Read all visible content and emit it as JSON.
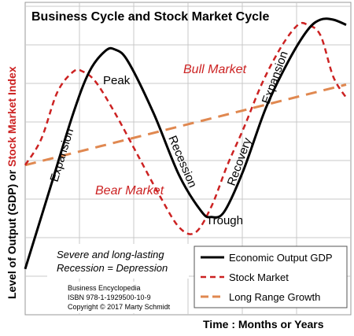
{
  "chart_data": {
    "type": "line",
    "title": "Business Cycle and Stock Market Cycle",
    "xlabel": "Time : Months or Years",
    "ylabel_part1": "Level of Output  (GDP) or ",
    "ylabel_part2": "Stock Market Index",
    "grid": true,
    "legend_position": "bottom-right",
    "xlim": [
      0,
      100
    ],
    "ylim": [
      0,
      100
    ],
    "colors": {
      "gdp": "#000000",
      "stock": "#cc2222",
      "growth": "#e08850",
      "grid": "#c8c8c8",
      "annotation_red": "#cc2222"
    },
    "series": [
      {
        "key": "gdp",
        "name": "Economic Output GDP",
        "x": [
          0,
          8,
          15,
          20,
          25,
          28,
          32,
          40,
          48,
          55,
          58,
          62,
          68,
          75,
          82,
          88,
          92,
          96,
          100
        ],
        "y": [
          4,
          36,
          64,
          80,
          88,
          88.5,
          84,
          64,
          40,
          26,
          24,
          26,
          42,
          66,
          84,
          96,
          100,
          100,
          98
        ]
      },
      {
        "key": "stock",
        "name": "Stock Market",
        "x": [
          0,
          5,
          10,
          15,
          18,
          22,
          28,
          35,
          42,
          48,
          53,
          58,
          63,
          68,
          74,
          80,
          85,
          88,
          92,
          96,
          100
        ],
        "y": [
          44,
          54,
          72,
          80,
          80,
          76,
          64,
          48,
          32,
          20,
          18,
          28,
          44,
          58,
          76,
          90,
          98,
          98,
          94,
          78,
          70
        ]
      },
      {
        "key": "growth",
        "name": "Long Range Growth",
        "x": [
          0,
          100
        ],
        "y": [
          44,
          75
        ]
      }
    ],
    "annotations": {
      "peak": "Peak",
      "trough": "Trough",
      "expansion_left": "Expansion",
      "recession": "Recession",
      "recovery": "Recovery",
      "expansion_right": "Expansion",
      "bull_market": "Bull Market",
      "bear_market": "Bear Market",
      "note_line1": "Severe and long-lasting",
      "note_line2": "Recession = Depression",
      "source_line1": "Business Encyclopedia",
      "source_line2": "ISBN 978-1-1929500-10-9",
      "source_line3": "Copyright © 2017 Marty Schmidt"
    }
  }
}
